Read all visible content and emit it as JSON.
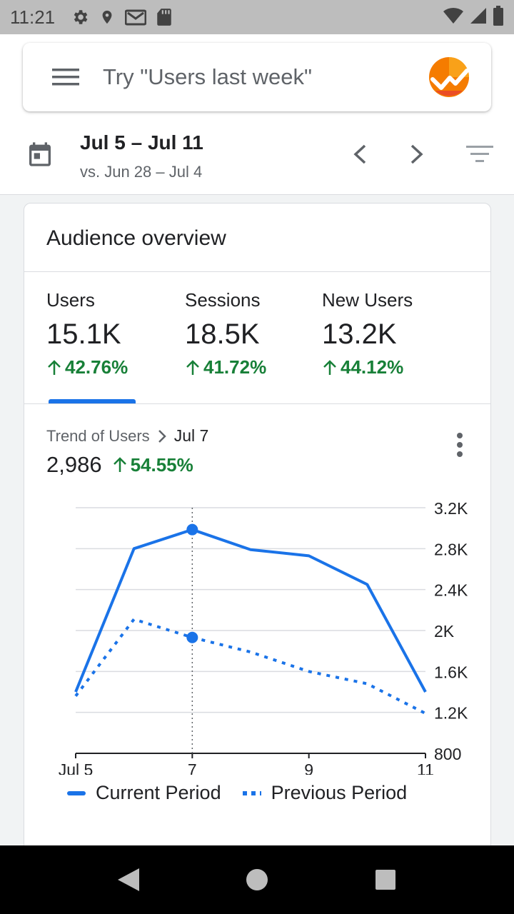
{
  "status_bar": {
    "time": "11:21",
    "left_icons": [
      "gear-icon",
      "location-icon",
      "gmail-icon",
      "sd-card-icon"
    ],
    "right_icons": [
      "wifi-icon",
      "signal-icon",
      "battery-icon"
    ]
  },
  "search": {
    "placeholder": "Try \"Users last week\"",
    "logo": "analytics-logo"
  },
  "date_range": {
    "main": "Jul 5 – Jul 11",
    "comparison": "vs. Jun 28 – Jul 4"
  },
  "card": {
    "title": "Audience overview",
    "metrics": [
      {
        "label": "Users",
        "value": "15.1K",
        "change": "42.76%"
      },
      {
        "label": "Sessions",
        "value": "18.5K",
        "change": "41.72%"
      },
      {
        "label": "New Users",
        "value": "13.2K",
        "change": "44.12%"
      }
    ],
    "selected_metric": 0
  },
  "trend": {
    "crumb_label": "Trend of Users",
    "crumb_date": "Jul 7",
    "value": "2,986",
    "change": "54.55%"
  },
  "colors": {
    "accent": "#1a73e8",
    "positive": "#188038"
  },
  "chart_data": {
    "type": "line",
    "title": "Trend of Users",
    "x": [
      5,
      6,
      7,
      8,
      9,
      10,
      11
    ],
    "x_tick_labels": [
      "Jul 5",
      "7",
      "9",
      "11"
    ],
    "x_tick_positions": [
      5,
      7,
      9,
      11
    ],
    "y_tick_labels": [
      "3.2K",
      "2.8K",
      "2.4K",
      "2K",
      "1.6K",
      "1.2K",
      "800"
    ],
    "y_ticks": [
      3200,
      2800,
      2400,
      2000,
      1600,
      1200,
      800
    ],
    "ylim": [
      800,
      3200
    ],
    "highlight_x": 7,
    "series": [
      {
        "name": "Current Period",
        "style": "solid",
        "values": [
          1400,
          2800,
          2986,
          2790,
          2730,
          2450,
          1400
        ]
      },
      {
        "name": "Previous Period",
        "style": "dotted",
        "values": [
          1360,
          2110,
          1932,
          1790,
          1600,
          1480,
          1190
        ]
      }
    ],
    "legend": [
      "Current Period",
      "Previous Period"
    ]
  }
}
